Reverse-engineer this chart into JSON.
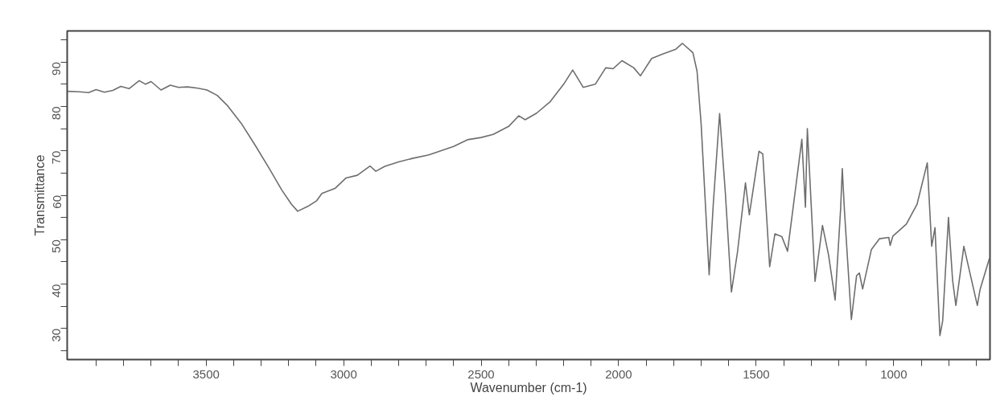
{
  "chart_data": {
    "type": "line",
    "xlabel": "Wavenumber (cm-1)",
    "ylabel": "Transmittance",
    "xlim": [
      4005,
      650
    ],
    "ylim": [
      23,
      97
    ],
    "xticks": [
      {
        "value": 3900,
        "label": null
      },
      {
        "value": 3800,
        "label": null
      },
      {
        "value": 3700,
        "label": null
      },
      {
        "value": 3600,
        "label": null
      },
      3500,
      {
        "value": 3400,
        "label": null
      },
      {
        "value": 3300,
        "label": null
      },
      {
        "value": 3200,
        "label": null
      },
      {
        "value": 3100,
        "label": null
      },
      3000,
      {
        "value": 2900,
        "label": null
      },
      {
        "value": 2800,
        "label": null
      },
      {
        "value": 2700,
        "label": null
      },
      {
        "value": 2600,
        "label": null
      },
      2500,
      {
        "value": 2400,
        "label": null
      },
      {
        "value": 2300,
        "label": null
      },
      {
        "value": 2200,
        "label": null
      },
      {
        "value": 2100,
        "label": null
      },
      2000,
      {
        "value": 1900,
        "label": null
      },
      {
        "value": 1800,
        "label": null
      },
      {
        "value": 1700,
        "label": null
      },
      {
        "value": 1600,
        "label": null
      },
      1500,
      {
        "value": 1400,
        "label": null
      },
      {
        "value": 1300,
        "label": null
      },
      {
        "value": 1200,
        "label": null
      },
      {
        "value": 1100,
        "label": null
      },
      1000,
      {
        "value": 900,
        "label": null
      },
      {
        "value": 800,
        "label": null
      },
      {
        "value": 700,
        "label": null
      }
    ],
    "yticks": [
      {
        "value": 25,
        "label": null
      },
      30,
      {
        "value": 35,
        "label": null
      },
      40,
      {
        "value": 45,
        "label": null
      },
      50,
      {
        "value": 55,
        "label": null
      },
      60,
      {
        "value": 65,
        "label": null
      },
      70,
      {
        "value": 75,
        "label": null
      },
      80,
      {
        "value": 85,
        "label": null
      },
      90,
      {
        "value": 95,
        "label": null
      }
    ],
    "grid": false,
    "marker": "none",
    "line_style": "solid",
    "series": [
      {
        "color": "#6e6e6e",
        "x": [
          4005,
          3960,
          3927,
          3900,
          3870,
          3839,
          3810,
          3780,
          3743,
          3720,
          3700,
          3664,
          3630,
          3600,
          3567,
          3530,
          3497,
          3460,
          3421,
          3370,
          3322,
          3270,
          3225,
          3190,
          3167,
          3130,
          3099,
          3079,
          3030,
          2991,
          2950,
          2904,
          2883,
          2850,
          2800,
          2750,
          2690,
          2600,
          2550,
          2500,
          2456,
          2400,
          2363,
          2340,
          2298,
          2250,
          2200,
          2167,
          2129,
          2085,
          2047,
          2020,
          1988,
          1945,
          1921,
          1880,
          1840,
          1792,
          1768,
          1730,
          1715,
          1700,
          1671,
          1656,
          1633,
          1612,
          1590,
          1568,
          1539,
          1525,
          1490,
          1476,
          1451,
          1432,
          1407,
          1386,
          1334,
          1321,
          1314,
          1286,
          1259,
          1237,
          1213,
          1193,
          1187,
          1179,
          1154,
          1135,
          1125,
          1113,
          1081,
          1052,
          1018,
          1013,
          1003,
          954,
          915,
          878,
          862,
          850,
          832,
          822,
          801,
          786,
          774,
          745,
          696,
          686,
          652
        ],
        "values": [
          83.4,
          83.3,
          83.1,
          83.8,
          83.2,
          83.6,
          84.5,
          84.0,
          85.8,
          85.0,
          85.6,
          83.7,
          84.8,
          84.3,
          84.4,
          84.1,
          83.7,
          82.5,
          80.1,
          76.0,
          71.3,
          66.0,
          61.2,
          58.0,
          56.4,
          57.5,
          58.7,
          60.4,
          61.6,
          63.9,
          64.5,
          66.6,
          65.4,
          66.5,
          67.5,
          68.3,
          69.1,
          71.0,
          72.5,
          73.0,
          73.7,
          75.5,
          77.9,
          77.0,
          78.5,
          81.0,
          85.0,
          88.2,
          84.3,
          85.0,
          88.7,
          88.5,
          90.3,
          88.7,
          86.9,
          90.8,
          91.8,
          92.9,
          94.2,
          92.1,
          87.9,
          75.9,
          42.1,
          58.0,
          78.4,
          60.4,
          38.2,
          47.2,
          62.8,
          55.6,
          69.9,
          69.3,
          43.9,
          51.3,
          50.7,
          47.4,
          72.6,
          57.3,
          75.0,
          40.6,
          53.2,
          46.6,
          36.4,
          57.0,
          66.0,
          56.4,
          32.0,
          41.9,
          42.5,
          38.9,
          47.8,
          50.2,
          50.5,
          48.7,
          50.8,
          53.5,
          58.0,
          67.3,
          48.5,
          52.7,
          28.4,
          31.7,
          55.0,
          40.9,
          35.2,
          48.5,
          35.2,
          38.8,
          45.8
        ]
      }
    ]
  }
}
